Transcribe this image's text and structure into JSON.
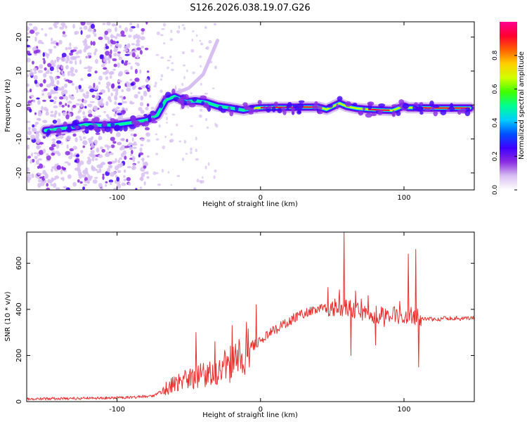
{
  "title": "S126.2026.038.19.07.G26",
  "colors": {
    "snr_line": "#e8312f",
    "axis": "#000000",
    "colormap": [
      "#ffffff",
      "#d7bff2",
      "#8a2be2",
      "#4000ff",
      "#0050ff",
      "#00d0ff",
      "#00ff90",
      "#40ff00",
      "#d0ff00",
      "#ffd000",
      "#ff6000",
      "#ff0030",
      "#ff0090"
    ]
  },
  "spectrogram": {
    "type": "heatmap",
    "xlabel": "Height of straight line (km)",
    "ylabel": "Frequency (Hz)",
    "xlim": [
      -163,
      149
    ],
    "ylim": [
      -25,
      24.5
    ],
    "xticks": [
      -100,
      0,
      100
    ],
    "yticks": [
      -20,
      -10,
      0,
      10,
      20
    ],
    "xtick_labels": [
      "-100",
      "0",
      "100"
    ],
    "ytick_labels": [
      "-20",
      "-10",
      "0",
      "10",
      "20"
    ],
    "ridge": [
      [
        -150,
        -7.5
      ],
      [
        -140,
        -7
      ],
      [
        -130,
        -6.5
      ],
      [
        -122,
        -5.8
      ],
      [
        -110,
        -6
      ],
      [
        -100,
        -5.8
      ],
      [
        -90,
        -5.2
      ],
      [
        -80,
        -4.5
      ],
      [
        -72,
        -3
      ],
      [
        -66,
        1.5
      ],
      [
        -60,
        2.5
      ],
      [
        -52,
        1
      ],
      [
        -45,
        1.2
      ],
      [
        -38,
        0.8
      ],
      [
        -30,
        -0.3
      ],
      [
        -22,
        -0.8
      ],
      [
        -12,
        -1.5
      ],
      [
        -5,
        -1
      ],
      [
        0,
        -0.8
      ],
      [
        10,
        -0.7
      ],
      [
        20,
        -0.7
      ],
      [
        30,
        -0.6
      ],
      [
        40,
        -0.6
      ],
      [
        46,
        -1.3
      ],
      [
        50,
        -0.5
      ],
      [
        55,
        0.5
      ],
      [
        60,
        -0.4
      ],
      [
        67,
        -1
      ],
      [
        75,
        -1.3
      ],
      [
        85,
        -1.5
      ],
      [
        92,
        -1.6
      ],
      [
        100,
        -0.3
      ],
      [
        103,
        -0.8
      ],
      [
        110,
        -0.8
      ],
      [
        120,
        -0.9
      ],
      [
        130,
        -0.9
      ],
      [
        146,
        -0.9
      ]
    ],
    "noise_region_x": [
      -163,
      -78
    ],
    "colorbar": {
      "label": "Normalized spectral amplitude",
      "range": [
        0,
        1
      ],
      "ticks": [
        "0.0",
        "0.2",
        "0.4",
        "0.6",
        "0.8"
      ]
    }
  },
  "snr": {
    "type": "line",
    "xlabel": "Height of straight line (km)",
    "ylabel": "SNR (10 * v/v)",
    "xlim": [
      -163,
      149
    ],
    "ylim": [
      0,
      735
    ],
    "xticks": [
      -100,
      0,
      100
    ],
    "yticks": [
      0,
      200,
      400,
      600
    ],
    "xtick_labels": [
      "-100",
      "0",
      "100"
    ],
    "ytick_labels": [
      "0",
      "200",
      "400",
      "600"
    ],
    "baseline": [
      [
        -163,
        12
      ],
      [
        -120,
        15
      ],
      [
        -90,
        18
      ],
      [
        -75,
        25
      ],
      [
        -65,
        60
      ],
      [
        -55,
        90
      ],
      [
        -45,
        110
      ],
      [
        -35,
        130
      ],
      [
        -25,
        150
      ],
      [
        -15,
        190
      ],
      [
        -5,
        240
      ],
      [
        5,
        290
      ],
      [
        15,
        330
      ],
      [
        25,
        370
      ],
      [
        35,
        395
      ],
      [
        45,
        405
      ],
      [
        55,
        410
      ],
      [
        65,
        400
      ],
      [
        75,
        380
      ],
      [
        85,
        375
      ],
      [
        95,
        372
      ],
      [
        105,
        370
      ],
      [
        112,
        362
      ],
      [
        120,
        358
      ],
      [
        130,
        360
      ],
      [
        149,
        362
      ]
    ],
    "spikes": [
      [
        -45,
        300
      ],
      [
        -32,
        260
      ],
      [
        -20,
        330
      ],
      [
        -15,
        270
      ],
      [
        -10,
        345
      ],
      [
        -3,
        420
      ],
      [
        47,
        495
      ],
      [
        55,
        485
      ],
      [
        58,
        735
      ],
      [
        63,
        200
      ],
      [
        66,
        480
      ],
      [
        70,
        445
      ],
      [
        75,
        460
      ],
      [
        80,
        245
      ],
      [
        86,
        325
      ],
      [
        97,
        435
      ],
      [
        103,
        640
      ],
      [
        108,
        660
      ],
      [
        110,
        150
      ]
    ]
  }
}
